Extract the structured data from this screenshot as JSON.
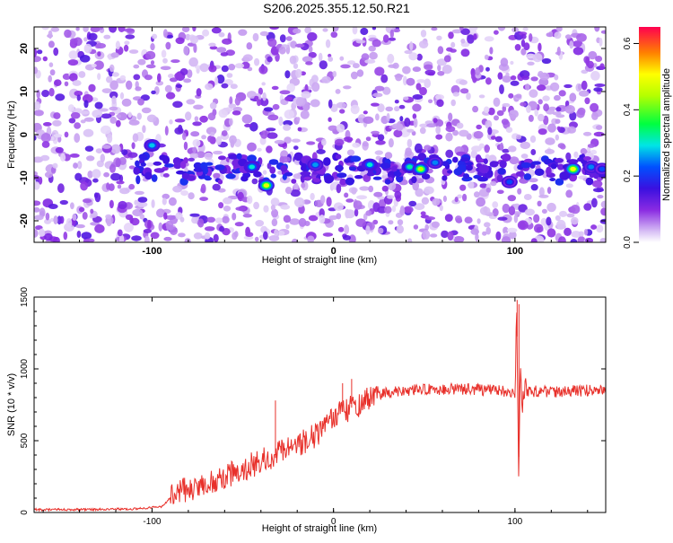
{
  "title": "S206.2025.355.12.50.R21",
  "chart_data": [
    {
      "type": "heatmap",
      "xlabel": "Height of straight line (km)",
      "ylabel": "Frequency (Hz)",
      "xlim": [
        -165,
        150
      ],
      "ylim": [
        -25,
        25
      ],
      "xticks": [
        -100,
        0,
        100
      ],
      "yticks": [
        -20,
        -10,
        0,
        10,
        20
      ],
      "colorbar": {
        "label": "Normalized spectral amplitude",
        "range": [
          0,
          0.65
        ],
        "ticks": [
          "0.0",
          "0.2",
          "0.4",
          "0.6"
        ],
        "tick_values": [
          0,
          0.2,
          0.4,
          0.6
        ],
        "colormap": "rainbow"
      },
      "signal_track": [
        {
          "x": -100,
          "f": -2.5,
          "amp": 0.28
        },
        {
          "x": -45,
          "f": -7.5,
          "amp": 0.3
        },
        {
          "x": -37,
          "f": -11.8,
          "amp": 0.48
        },
        {
          "x": -10,
          "f": -7,
          "amp": 0.26
        },
        {
          "x": 20,
          "f": -7,
          "amp": 0.3
        },
        {
          "x": 42,
          "f": -7.5,
          "amp": 0.32
        },
        {
          "x": 48,
          "f": -8,
          "amp": 0.45
        },
        {
          "x": 56,
          "f": -6.5,
          "amp": 0.25
        },
        {
          "x": 97,
          "f": -11,
          "amp": 0.22
        },
        {
          "x": 132,
          "f": -8,
          "amp": 0.5
        },
        {
          "x": 142,
          "f": -7.5,
          "amp": 0.25
        },
        {
          "x": 148,
          "f": -8,
          "amp": 0.22
        }
      ]
    },
    {
      "type": "line",
      "xlabel": "Height of straight line (km)",
      "ylabel": "SNR (10 * v/v)",
      "xlim": [
        -165,
        150
      ],
      "ylim": [
        0,
        1500
      ],
      "xticks": [
        -100,
        0,
        100
      ],
      "yticks": [
        0,
        500,
        1000,
        1500
      ],
      "color": "#e8302a",
      "series": [
        {
          "x": [
            -165,
            -140,
            -110,
            -95,
            -90,
            -85,
            -75,
            -65,
            -55,
            -45,
            -40,
            -32,
            -30,
            -25,
            -15,
            -5,
            0,
            5,
            15,
            20,
            25,
            30,
            40,
            50,
            60,
            70,
            80,
            90,
            95,
            100,
            101,
            102,
            103,
            104,
            105,
            110,
            120,
            130,
            140,
            150
          ],
          "y": [
            20,
            20,
            25,
            40,
            100,
            150,
            180,
            220,
            280,
            330,
            360,
            380,
            420,
            450,
            500,
            580,
            650,
            700,
            760,
            790,
            820,
            840,
            850,
            855,
            860,
            860,
            855,
            850,
            840,
            830,
            1480,
            210,
            1100,
            650,
            850,
            845,
            840,
            845,
            850,
            850
          ]
        }
      ]
    }
  ]
}
